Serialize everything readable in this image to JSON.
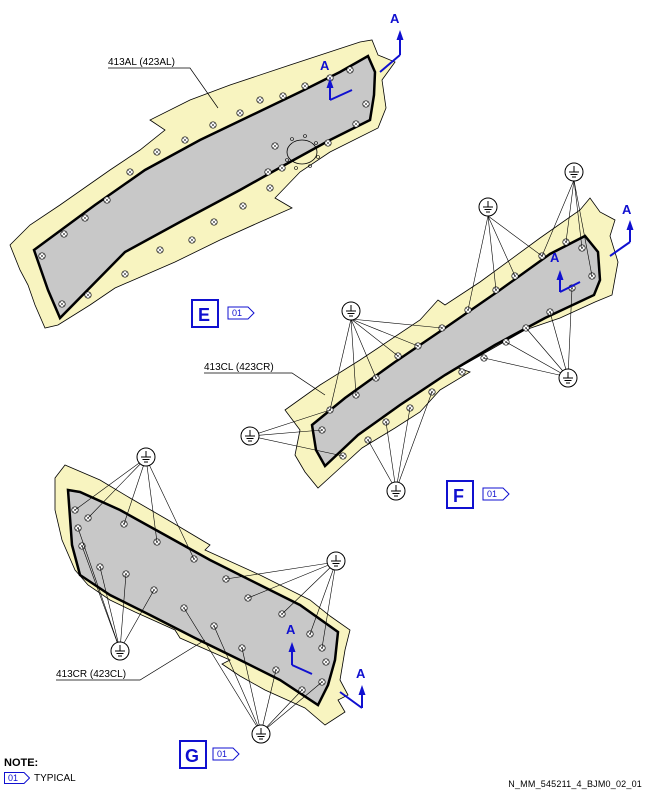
{
  "panels": [
    {
      "view": "E",
      "part_label": "413AL (423AL)",
      "tag": "01"
    },
    {
      "view": "F",
      "part_label": "413CL (423CR)",
      "tag": "01"
    },
    {
      "view": "G",
      "part_label": "413CR (423CL)",
      "tag": "01"
    }
  ],
  "section_arrow_label": "A",
  "note": {
    "heading": "NOTE:",
    "tag": "01",
    "text": "TYPICAL"
  },
  "figure_id": "N_MM_545211_4_BJM0_02_01",
  "colors": {
    "panel_fill": "#c8c8c8",
    "seal_fill": "#f8f4c0",
    "accent_blue": "#1010d0",
    "outline": "#000000"
  }
}
